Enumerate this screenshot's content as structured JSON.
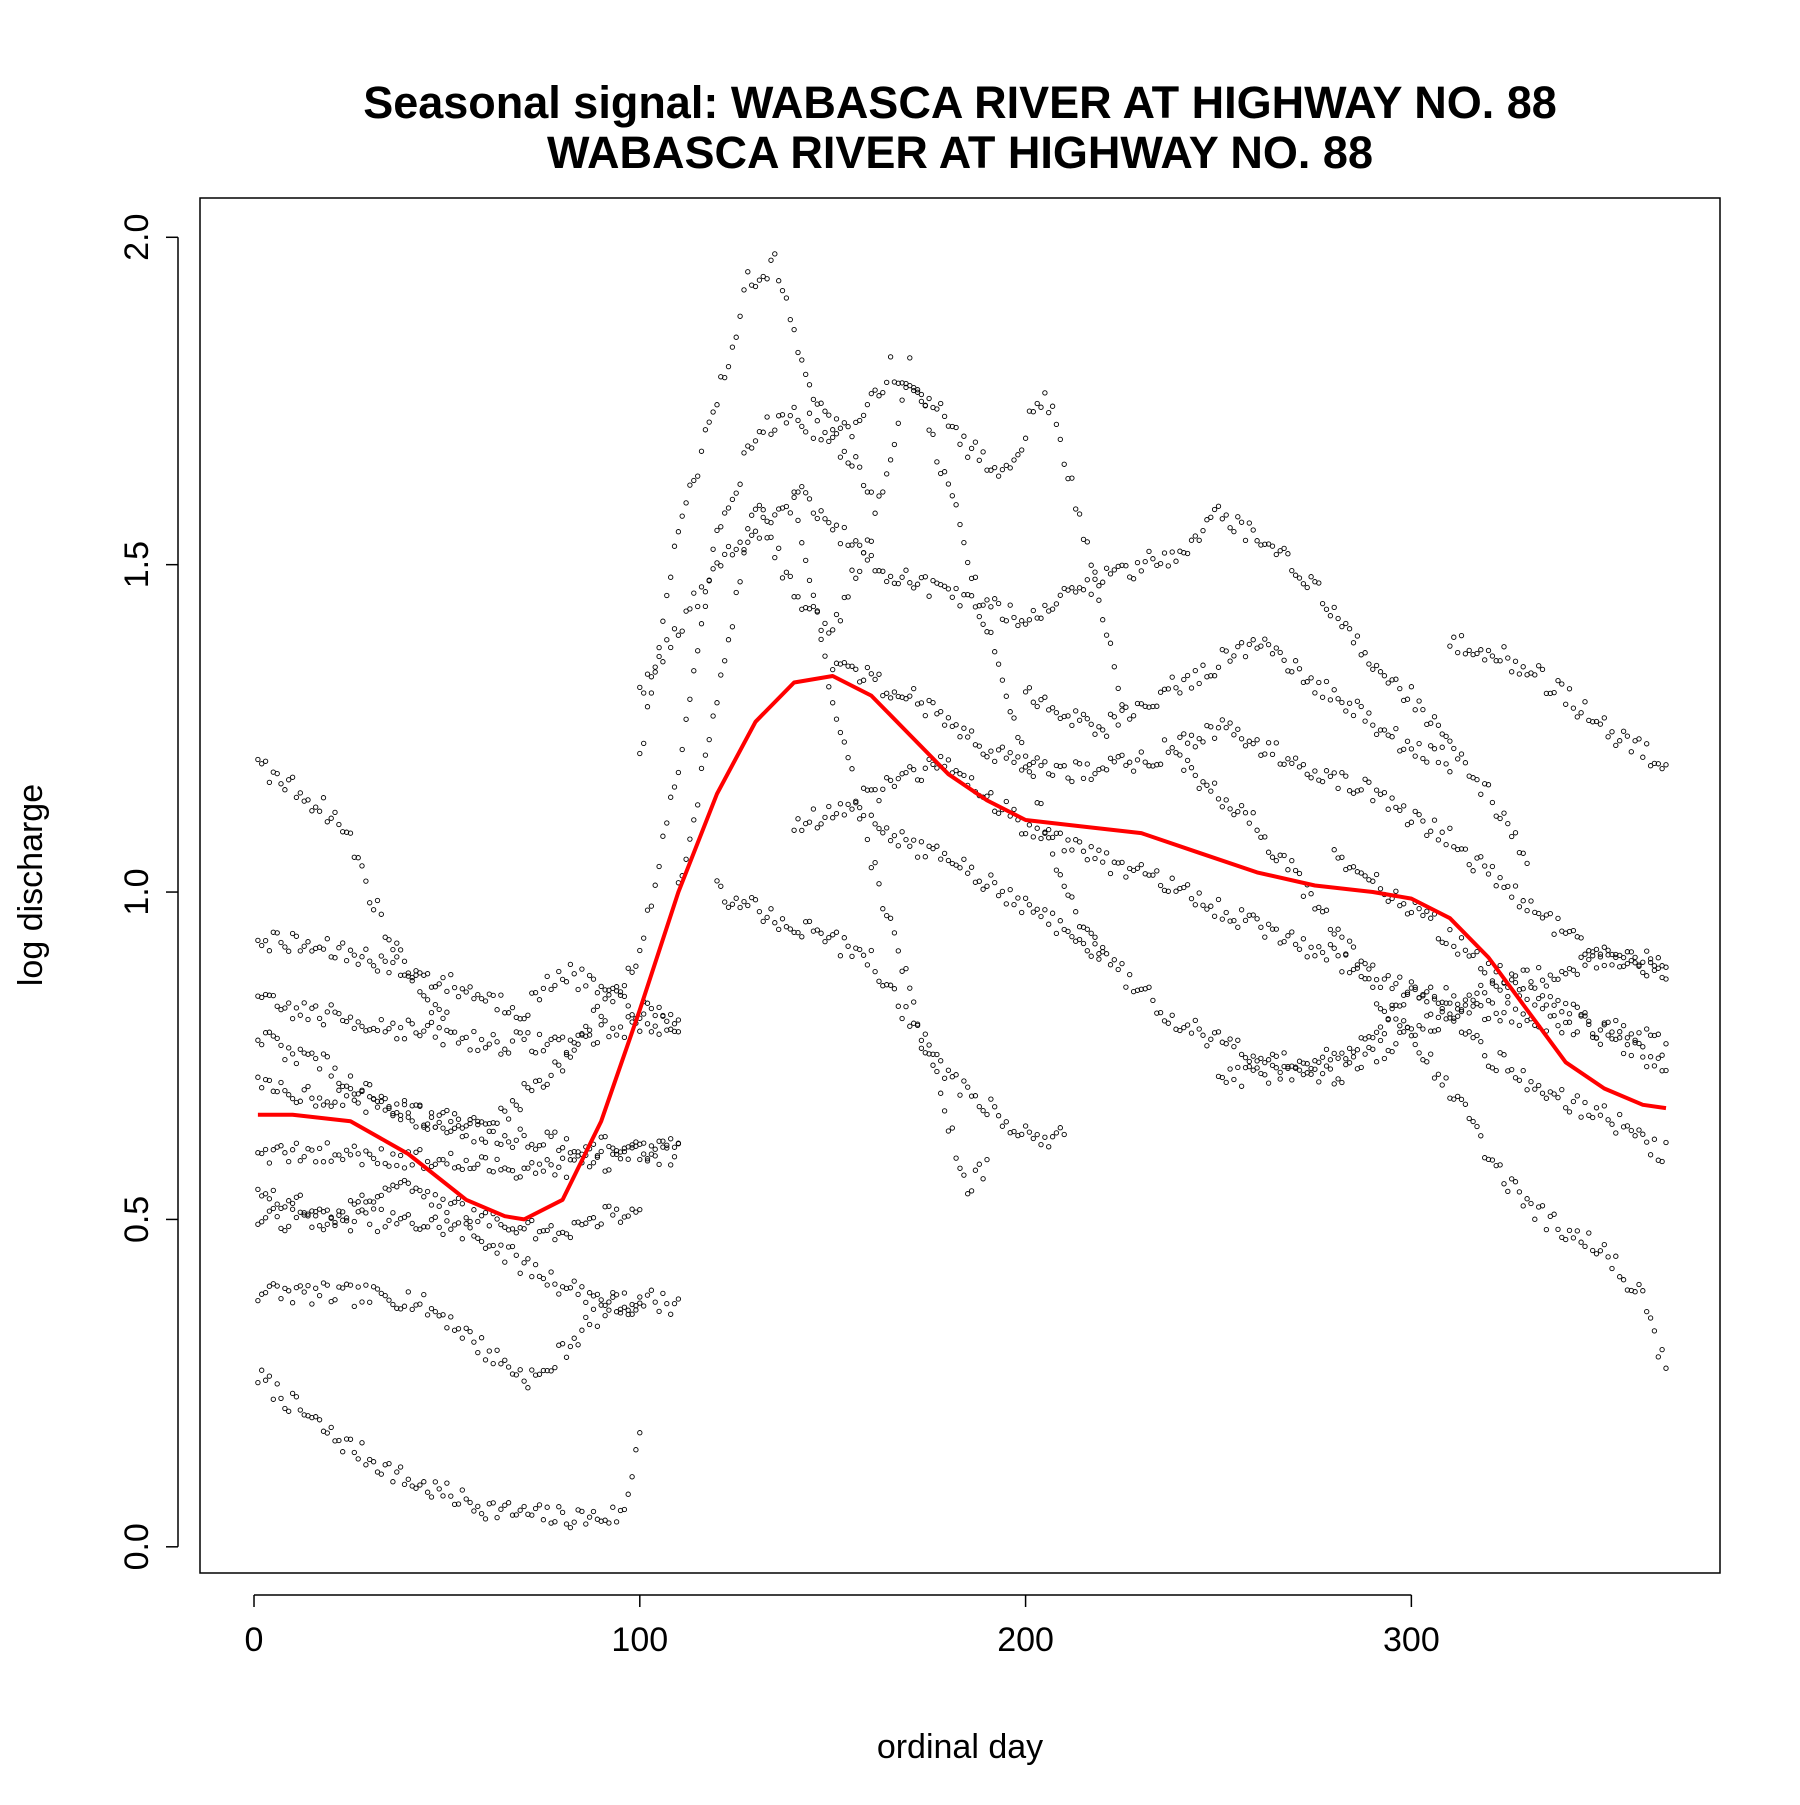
{
  "chart_data": {
    "type": "scatter",
    "title_line1": "Seasonal signal: WABASCA RIVER AT HIGHWAY NO. 88",
    "title_line2": "WABASCA RIVER AT HIGHWAY NO. 88",
    "xlabel": "ordinal day",
    "ylabel": "log discharge",
    "xlim": [
      -14,
      380
    ],
    "ylim": [
      -0.04,
      2.06
    ],
    "x_ticks": [
      0,
      100,
      200,
      300
    ],
    "x_tick_labels": [
      "0",
      "100",
      "200",
      "300"
    ],
    "y_ticks": [
      0.0,
      0.5,
      1.0,
      1.5,
      2.0
    ],
    "y_tick_labels": [
      "0.0",
      "0.5",
      "1.0",
      "1.5",
      "2.0"
    ],
    "grid": false,
    "legend": "none",
    "point_color": "#000000",
    "line_color": "#ff0000",
    "series": [
      {
        "kind": "points",
        "tracks": [
          {
            "x": [
              1,
              20,
              40,
              60,
              70,
              80,
              90,
              96,
              100
            ],
            "y": [
              0.26,
              0.17,
              0.1,
              0.06,
              0.05,
              0.045,
              0.045,
              0.05,
              0.18
            ]
          },
          {
            "x": [
              1,
              40,
              50,
              60,
              70,
              75,
              80,
              90,
              100,
              110
            ],
            "y": [
              0.39,
              0.38,
              0.35,
              0.3,
              0.26,
              0.26,
              0.3,
              0.36,
              0.38,
              0.37
            ]
          },
          {
            "x": [
              1,
              30,
              50,
              60,
              70,
              80,
              90,
              100
            ],
            "y": [
              0.5,
              0.5,
              0.49,
              0.47,
              0.43,
              0.4,
              0.38,
              0.36
            ]
          },
          {
            "x": [
              1,
              10,
              20,
              25,
              30,
              35,
              40,
              50
            ],
            "y": [
              1.19,
              1.16,
              1.12,
              1.08,
              1.0,
              0.93,
              0.88,
              0.8
            ]
          },
          {
            "x": [
              1,
              30,
              60,
              70,
              80,
              90,
              100,
              110
            ],
            "y": [
              0.93,
              0.9,
              0.84,
              0.82,
              0.88,
              0.85,
              0.82,
              0.8
            ]
          },
          {
            "x": [
              1,
              30,
              60,
              80,
              100,
              110
            ],
            "y": [
              0.83,
              0.8,
              0.77,
              0.77,
              0.8,
              0.8
            ]
          },
          {
            "x": [
              1,
              30,
              60,
              80,
              100,
              110
            ],
            "y": [
              0.7,
              0.68,
              0.63,
              0.62,
              0.6,
              0.6
            ]
          },
          {
            "x": [
              1,
              30,
              60,
              80,
              100,
              110
            ],
            "y": [
              0.6,
              0.6,
              0.58,
              0.58,
              0.6,
              0.61
            ]
          },
          {
            "x": [
              1,
              20,
              40,
              60,
              70,
              80,
              100,
              110,
              120,
              130,
              140,
              150,
              160
            ],
            "y": [
              0.78,
              0.73,
              0.66,
              0.64,
              0.69,
              0.74,
              0.9,
              1.2,
              1.55,
              1.7,
              1.73,
              1.69,
              1.62
            ]
          },
          {
            "x": [
              100,
              110,
              120,
              128,
              135,
              140,
              148,
              155,
              165,
              175,
              185,
              195,
              205,
              215,
              225
            ],
            "y": [
              1.2,
              1.55,
              1.75,
              1.93,
              1.96,
              1.85,
              1.72,
              1.7,
              1.8,
              1.75,
              1.68,
              1.64,
              1.77,
              1.55,
              1.3
            ]
          },
          {
            "x": [
              110,
              120,
              130,
              140,
              150,
              160,
              170,
              180,
              190,
              200,
              210,
              220
            ],
            "y": [
              1.0,
              1.3,
              1.6,
              1.45,
              1.4,
              1.55,
              1.8,
              1.62,
              1.4,
              1.2,
              1.0,
              0.9
            ]
          },
          {
            "x": [
              100,
              120,
              140,
              150,
              160,
              170,
              180,
              185,
              190
            ],
            "y": [
              1.3,
              1.5,
              1.6,
              1.3,
              1.05,
              0.85,
              0.65,
              0.55,
              0.58
            ]
          },
          {
            "x": [
              140,
              160,
              180,
              200,
              220,
              240,
              250,
              270,
              290,
              300,
              320,
              330
            ],
            "y": [
              1.62,
              1.5,
              1.45,
              1.42,
              1.48,
              1.52,
              1.58,
              1.5,
              1.35,
              1.3,
              1.15,
              1.05
            ]
          },
          {
            "x": [
              150,
              170,
              190,
              210,
              230,
              250,
              270,
              290,
              310,
              330,
              350,
              366
            ],
            "y": [
              1.35,
              1.3,
              1.22,
              1.18,
              1.2,
              1.25,
              1.2,
              1.15,
              1.08,
              0.98,
              0.9,
              0.88
            ]
          },
          {
            "x": [
              310,
              320,
              330,
              340,
              350,
              360,
              366
            ],
            "y": [
              1.38,
              1.37,
              1.34,
              1.3,
              1.25,
              1.22,
              1.19
            ]
          },
          {
            "x": [
              140,
              160,
              180,
              200,
              220,
              240,
              260,
              280,
              300,
              320,
              340,
              360,
              366
            ],
            "y": [
              1.1,
              1.15,
              1.2,
              1.1,
              1.05,
              1.0,
              0.95,
              0.9,
              0.85,
              0.82,
              0.8,
              0.78,
              0.76
            ]
          },
          {
            "x": [
              160,
              180,
              200,
              220,
              240,
              260,
              280,
              300,
              320,
              340,
              366
            ],
            "y": [
              1.1,
              1.05,
              0.98,
              0.9,
              0.8,
              0.75,
              0.72,
              0.78,
              0.85,
              0.88,
              0.9
            ]
          },
          {
            "x": [
              120,
              140,
              160,
              170,
              180,
              195,
              205,
              210
            ],
            "y": [
              1.0,
              0.95,
              0.9,
              0.8,
              0.72,
              0.65,
              0.62,
              0.64
            ]
          },
          {
            "x": [
              240,
              260,
              280,
              290,
              300,
              310,
              320,
              330,
              340,
              350,
              360,
              366
            ],
            "y": [
              1.2,
              1.1,
              0.95,
              0.85,
              0.78,
              0.7,
              0.6,
              0.52,
              0.48,
              0.45,
              0.38,
              0.27
            ]
          },
          {
            "x": [
              250,
              270,
              290,
              300,
              310,
              320,
              340,
              350,
              360,
              366
            ],
            "y": [
              0.72,
              0.72,
              0.78,
              0.84,
              0.82,
              0.75,
              0.68,
              0.66,
              0.62,
              0.6
            ]
          },
          {
            "x": [
              280,
              300,
              320,
              340,
              350,
              360,
              366
            ],
            "y": [
              1.05,
              0.98,
              0.88,
              0.82,
              0.78,
              0.75,
              0.74
            ]
          },
          {
            "x": [
              200,
              220,
              240,
              260,
              280,
              300,
              310
            ],
            "y": [
              1.3,
              1.25,
              1.32,
              1.38,
              1.3,
              1.22,
              1.2
            ]
          },
          {
            "x": [
              1,
              20,
              40,
              60,
              80,
              100
            ],
            "y": [
              0.55,
              0.5,
              0.55,
              0.5,
              0.48,
              0.52
            ]
          }
        ]
      },
      {
        "kind": "line",
        "x": [
          1,
          10,
          25,
          40,
          55,
          65,
          70,
          80,
          90,
          100,
          110,
          120,
          130,
          140,
          150,
          160,
          170,
          180,
          190,
          200,
          215,
          230,
          245,
          260,
          275,
          290,
          300,
          310,
          320,
          330,
          340,
          350,
          360,
          366
        ],
        "y": [
          0.66,
          0.66,
          0.65,
          0.6,
          0.53,
          0.505,
          0.5,
          0.53,
          0.65,
          0.82,
          1.0,
          1.15,
          1.26,
          1.32,
          1.33,
          1.3,
          1.24,
          1.18,
          1.14,
          1.11,
          1.1,
          1.09,
          1.06,
          1.03,
          1.01,
          1.0,
          0.99,
          0.96,
          0.9,
          0.82,
          0.74,
          0.7,
          0.675,
          0.67
        ]
      }
    ]
  }
}
